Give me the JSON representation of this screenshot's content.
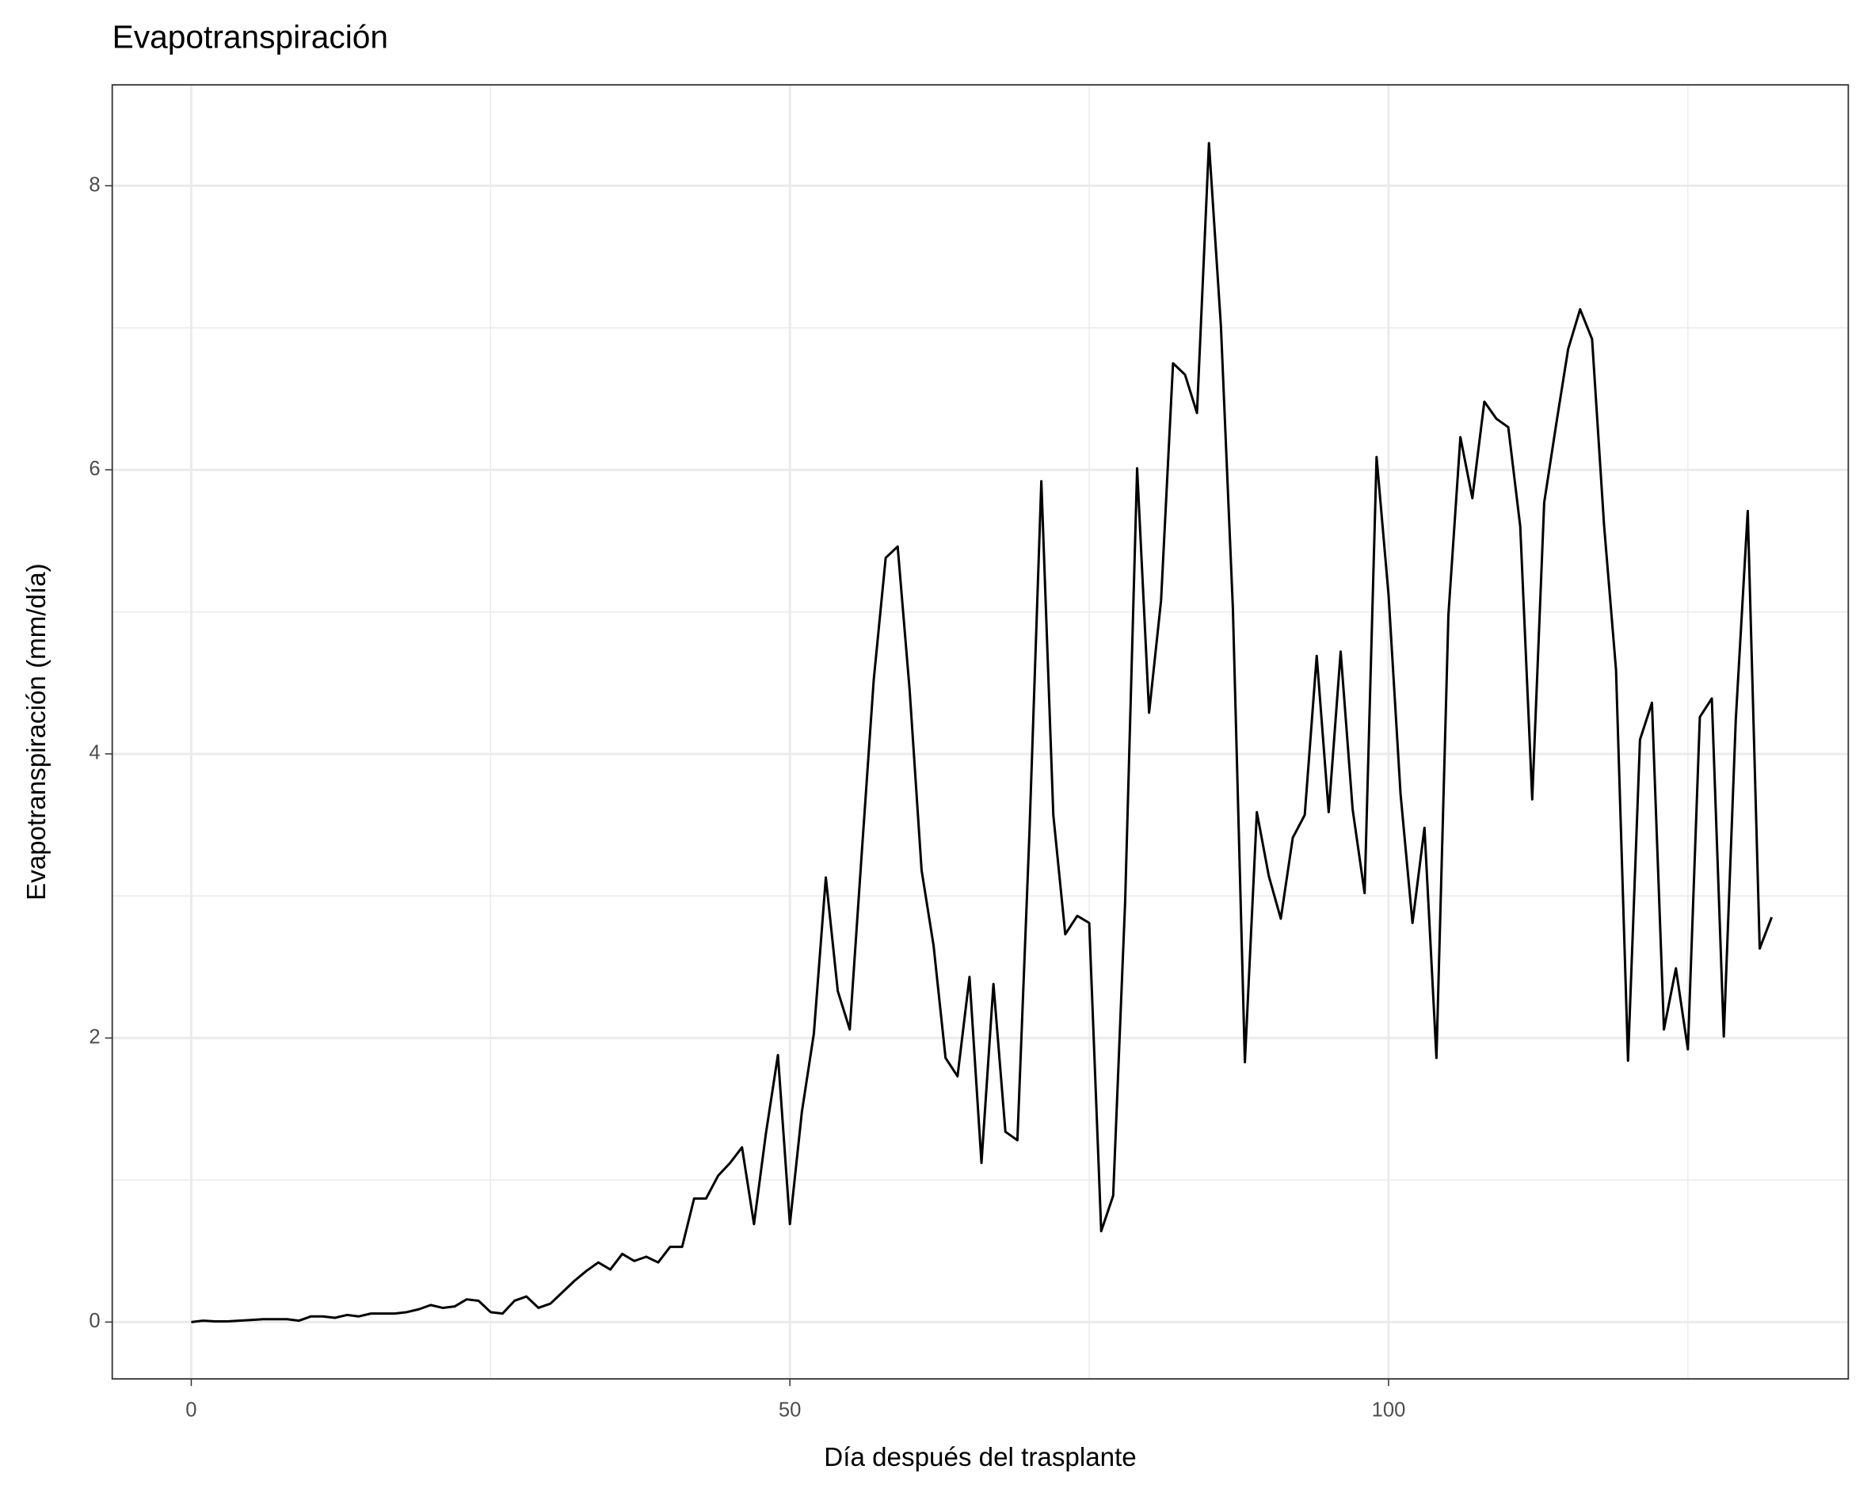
{
  "chart_data": {
    "type": "line",
    "title": "Evapotranspiración",
    "x_label": "Día después del trasplante",
    "y_label": "Evapotranspiración (mm/día)",
    "x": [
      0,
      1,
      2,
      3,
      4,
      5,
      6,
      7,
      8,
      9,
      10,
      11,
      12,
      13,
      14,
      15,
      16,
      17,
      18,
      19,
      20,
      21,
      22,
      23,
      24,
      25,
      26,
      27,
      28,
      29,
      30,
      31,
      32,
      33,
      34,
      35,
      36,
      37,
      38,
      39,
      40,
      41,
      42,
      43,
      44,
      45,
      46,
      47,
      48,
      49,
      50,
      51,
      52,
      53,
      54,
      55,
      56,
      57,
      58,
      59,
      60,
      61,
      62,
      63,
      64,
      65,
      66,
      67,
      68,
      69,
      70,
      71,
      72,
      73,
      74,
      75,
      76,
      77,
      78,
      79,
      80,
      81,
      82,
      83,
      84,
      85,
      86,
      87,
      88,
      89,
      90,
      91,
      92,
      93,
      94,
      95,
      96,
      97,
      98,
      99,
      100,
      101,
      102,
      103,
      104,
      105,
      106,
      107,
      108,
      109,
      110,
      111,
      112,
      113,
      114,
      115,
      116,
      117,
      118,
      119,
      120,
      121,
      122,
      123,
      124,
      125,
      126,
      127,
      128,
      129,
      130,
      131,
      132
    ],
    "series": [
      {
        "name": "Evapotranspiración",
        "color": "#000000",
        "values": [
          0,
          0.01,
          0.005,
          0.005,
          0.01,
          0.015,
          0.02,
          0.02,
          0.02,
          0.01,
          0.04,
          0.04,
          0.03,
          0.05,
          0.04,
          0.06,
          0.06,
          0.06,
          0.07,
          0.09,
          0.12,
          0.1,
          0.11,
          0.16,
          0.15,
          0.07,
          0.06,
          0.15,
          0.18,
          0.1,
          0.13,
          0.21,
          0.29,
          0.36,
          0.42,
          0.37,
          0.48,
          0.43,
          0.46,
          0.42,
          0.53,
          0.53,
          0.87,
          0.87,
          1.03,
          1.12,
          1.23,
          0.69,
          1.33,
          1.88,
          0.69,
          1.48,
          2.03,
          3.13,
          2.33,
          2.06,
          3.3,
          4.52,
          5.38,
          5.46,
          4.45,
          3.18,
          2.65,
          1.86,
          1.73,
          2.43,
          1.12,
          2.38,
          1.34,
          1.28,
          3.43,
          5.92,
          3.57,
          2.73,
          2.86,
          2.81,
          0.64,
          0.89,
          2.96,
          6.01,
          4.29,
          5.08,
          6.75,
          6.67,
          6.4,
          8.3,
          7.01,
          5.02,
          1.83,
          3.59,
          3.14,
          2.84,
          3.41,
          3.57,
          4.69,
          3.59,
          4.72,
          3.61,
          3.02,
          6.09,
          5.12,
          3.72,
          2.81,
          3.48,
          1.86,
          4.98,
          6.23,
          5.8,
          6.48,
          6.36,
          6.3,
          5.6,
          3.68,
          5.77,
          6.32,
          6.85,
          7.13,
          6.92,
          5.61,
          4.59,
          1.84,
          4.1,
          4.36,
          2.06,
          2.49,
          1.92,
          4.26,
          4.39,
          2.01,
          4.24,
          5.71,
          2.63,
          2.85
        ]
      }
    ],
    "xlim": [
      -6.6,
      138.4
    ],
    "xticks": [
      0,
      50,
      100
    ],
    "xminor": [
      25,
      75,
      125
    ],
    "ylim": [
      -0.4,
      8.71
    ],
    "yticks": [
      0,
      2,
      4,
      6,
      8
    ],
    "yminor": [
      1,
      3,
      5,
      7
    ],
    "grid": true,
    "legend": false
  }
}
